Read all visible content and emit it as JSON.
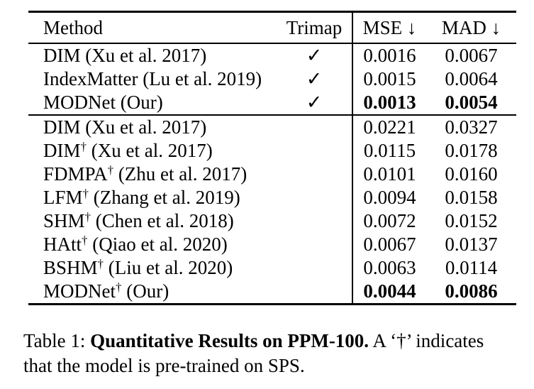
{
  "table": {
    "columns": {
      "method": "Method",
      "trimap": "Trimap",
      "mse": "MSE ↓",
      "mad": "MAD ↓"
    },
    "rows": [
      {
        "name": "DIM",
        "sup": "",
        "cite": " (Xu et al. 2017)",
        "trimap": "✓",
        "mse": "0.0016",
        "mad": "0.0067"
      },
      {
        "name": "IndexMatter",
        "sup": "",
        "cite": " (Lu et al. 2019)",
        "trimap": "✓",
        "mse": "0.0015",
        "mad": "0.0064"
      },
      {
        "name": "MODNet",
        "sup": "",
        "cite": " (Our)",
        "trimap": "✓",
        "mse": "0.0013",
        "mad": "0.0054"
      },
      {
        "name": "DIM",
        "sup": "",
        "cite": " (Xu et al. 2017)",
        "trimap": "",
        "mse": "0.0221",
        "mad": "0.0327"
      },
      {
        "name": "DIM",
        "sup": "†",
        "cite": " (Xu et al. 2017)",
        "trimap": "",
        "mse": "0.0115",
        "mad": "0.0178"
      },
      {
        "name": "FDMPA",
        "sup": "†",
        "cite": " (Zhu et al. 2017)",
        "trimap": "",
        "mse": "0.0101",
        "mad": "0.0160"
      },
      {
        "name": "LFM",
        "sup": "†",
        "cite": " (Zhang et al. 2019)",
        "trimap": "",
        "mse": "0.0094",
        "mad": "0.0158"
      },
      {
        "name": "SHM",
        "sup": "†",
        "cite": " (Chen et al. 2018)",
        "trimap": "",
        "mse": "0.0072",
        "mad": "0.0152"
      },
      {
        "name": "HAtt",
        "sup": "†",
        "cite": " (Qiao et al. 2020)",
        "trimap": "",
        "mse": "0.0067",
        "mad": "0.0137"
      },
      {
        "name": "BSHM",
        "sup": "†",
        "cite": " (Liu et al. 2020)",
        "trimap": "",
        "mse": "0.0063",
        "mad": "0.0114"
      },
      {
        "name": "MODNet",
        "sup": "†",
        "cite": " (Our)",
        "trimap": "",
        "mse": "0.0044",
        "mad": "0.0086"
      }
    ]
  },
  "caption": {
    "prefix": "Table 1: ",
    "bold": "Quantitative Results on PPM-100.",
    "rest": " A ‘†’ indicates",
    "line2": "that the model is pre-trained on SPS."
  }
}
